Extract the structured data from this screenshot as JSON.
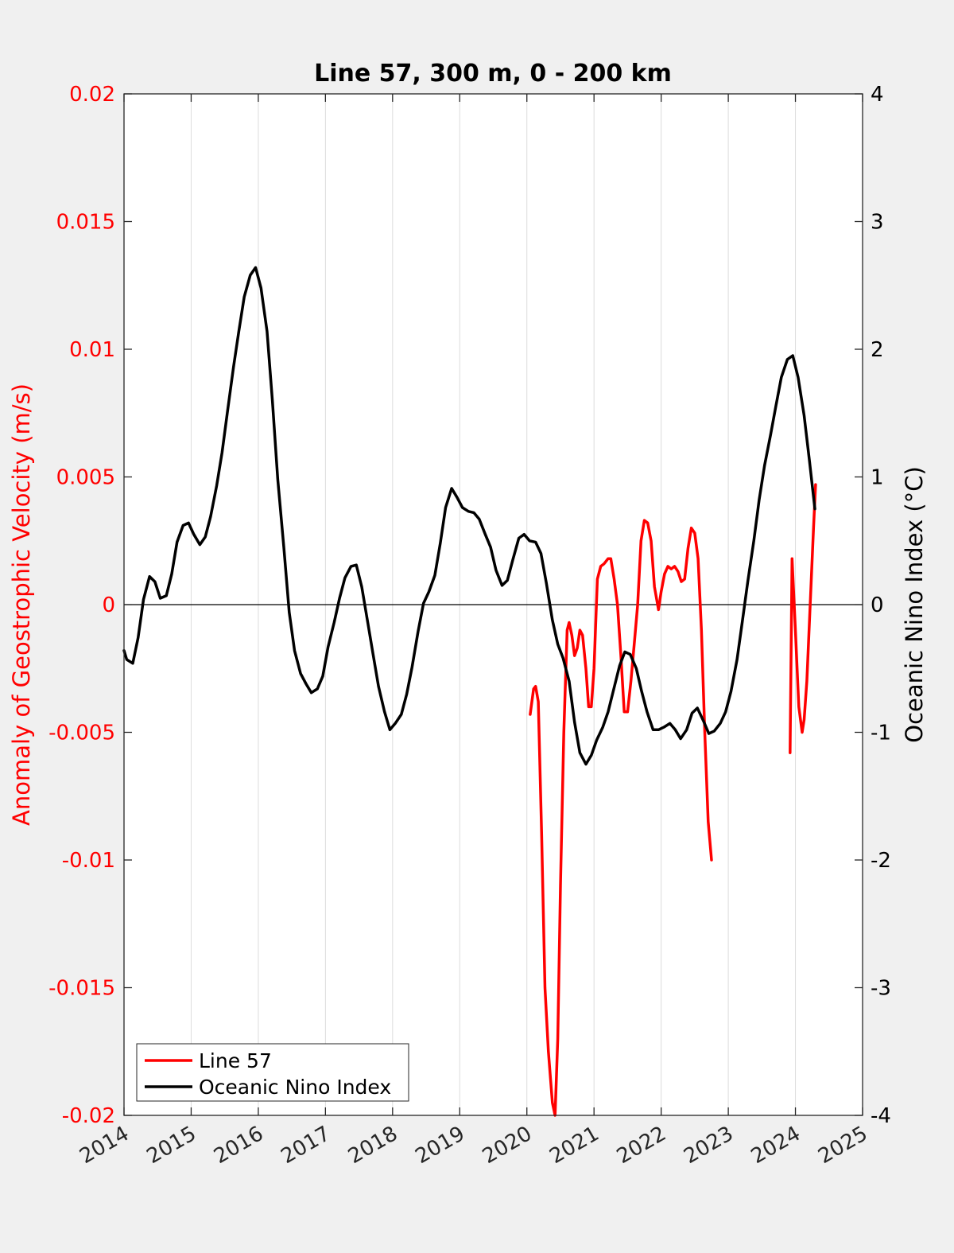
{
  "chart_data": {
    "type": "line",
    "title": "Line 57, 300 m, 0 - 200 km",
    "xlabel": "",
    "ylabel_left": "Anomaly of Geostrophic Velocity (m/s)",
    "ylabel_right": "Oceanic Nino Index (°C)",
    "xlim": [
      2014,
      2025
    ],
    "ylim_left": [
      -0.02,
      0.02
    ],
    "ylim_right": [
      -4,
      4
    ],
    "x_ticks": [
      "2014",
      "2015",
      "2016",
      "2017",
      "2018",
      "2019",
      "2020",
      "2021",
      "2022",
      "2023",
      "2024",
      "2025"
    ],
    "y_left_ticks": [
      "-0.02",
      "-0.015",
      "-0.01",
      "-0.005",
      "0",
      "0.005",
      "0.01",
      "0.015",
      "0.02"
    ],
    "y_right_ticks": [
      "-4",
      "-3",
      "-2",
      "-1",
      "0",
      "1",
      "2",
      "3",
      "4"
    ],
    "grid": "vertical",
    "zero_line": true,
    "legend_position": "bottom-left",
    "colors": {
      "left_axis": "#ff0000",
      "right_axis": "#000000",
      "background": "#f0f0f0"
    },
    "series": [
      {
        "name": "Line 57",
        "axis": "left",
        "color": "#ff0000",
        "segments": [
          [
            [
              2020.05,
              -0.0043
            ],
            [
              2020.1,
              -0.0033
            ],
            [
              2020.13,
              -0.0032
            ],
            [
              2020.17,
              -0.0038
            ],
            [
              2020.22,
              -0.009
            ],
            [
              2020.27,
              -0.015
            ],
            [
              2020.32,
              -0.0175
            ],
            [
              2020.38,
              -0.0195
            ],
            [
              2020.42,
              -0.02
            ],
            [
              2020.46,
              -0.017
            ],
            [
              2020.5,
              -0.011
            ],
            [
              2020.55,
              -0.005
            ],
            [
              2020.6,
              -0.001
            ],
            [
              2020.63,
              -0.0007
            ],
            [
              2020.67,
              -0.0012
            ],
            [
              2020.71,
              -0.002
            ],
            [
              2020.75,
              -0.0017
            ],
            [
              2020.79,
              -0.001
            ],
            [
              2020.83,
              -0.0012
            ],
            [
              2020.88,
              -0.0025
            ],
            [
              2020.92,
              -0.004
            ],
            [
              2020.96,
              -0.004
            ],
            [
              2021.0,
              -0.0025
            ],
            [
              2021.05,
              0.001
            ],
            [
              2021.1,
              0.0015
            ],
            [
              2021.15,
              0.0016
            ],
            [
              2021.21,
              0.0018
            ],
            [
              2021.25,
              0.0018
            ],
            [
              2021.3,
              0.001
            ],
            [
              2021.35,
              0.0
            ],
            [
              2021.4,
              -0.002
            ],
            [
              2021.45,
              -0.0042
            ],
            [
              2021.5,
              -0.0042
            ],
            [
              2021.55,
              -0.003
            ],
            [
              2021.6,
              -0.0015
            ],
            [
              2021.65,
              0.0
            ],
            [
              2021.7,
              0.0025
            ],
            [
              2021.75,
              0.0033
            ],
            [
              2021.8,
              0.0032
            ],
            [
              2021.85,
              0.0025
            ],
            [
              2021.9,
              0.0007
            ],
            [
              2021.96,
              -0.0002
            ],
            [
              2022.0,
              0.0005
            ],
            [
              2022.05,
              0.0012
            ],
            [
              2022.1,
              0.0015
            ],
            [
              2022.15,
              0.0014
            ],
            [
              2022.2,
              0.0015
            ],
            [
              2022.25,
              0.0013
            ],
            [
              2022.3,
              0.0009
            ],
            [
              2022.35,
              0.001
            ],
            [
              2022.4,
              0.0022
            ],
            [
              2022.45,
              0.003
            ],
            [
              2022.5,
              0.0028
            ],
            [
              2022.55,
              0.0018
            ],
            [
              2022.6,
              -0.001
            ],
            [
              2022.65,
              -0.005
            ],
            [
              2022.7,
              -0.0085
            ],
            [
              2022.75,
              -0.01
            ]
          ],
          [
            [
              2023.92,
              -0.0058
            ],
            [
              2023.95,
              0.0018
            ],
            [
              2024.0,
              -0.001
            ],
            [
              2024.05,
              -0.004
            ],
            [
              2024.1,
              -0.005
            ],
            [
              2024.13,
              -0.0045
            ],
            [
              2024.17,
              -0.003
            ],
            [
              2024.22,
              0.0
            ],
            [
              2024.27,
              0.003
            ],
            [
              2024.3,
              0.0047
            ]
          ]
        ]
      },
      {
        "name": "Oceanic Nino Index",
        "axis": "right",
        "color": "#000000",
        "points": [
          [
            2014.0,
            -0.36
          ],
          [
            2014.04,
            -0.43
          ],
          [
            2014.13,
            -0.46
          ],
          [
            2014.21,
            -0.26
          ],
          [
            2014.29,
            0.04
          ],
          [
            2014.38,
            0.22
          ],
          [
            2014.46,
            0.18
          ],
          [
            2014.54,
            0.05
          ],
          [
            2014.63,
            0.07
          ],
          [
            2014.71,
            0.24
          ],
          [
            2014.79,
            0.49
          ],
          [
            2014.88,
            0.62
          ],
          [
            2014.96,
            0.64
          ],
          [
            2015.04,
            0.55
          ],
          [
            2015.13,
            0.47
          ],
          [
            2015.21,
            0.53
          ],
          [
            2015.29,
            0.69
          ],
          [
            2015.38,
            0.93
          ],
          [
            2015.46,
            1.19
          ],
          [
            2015.54,
            1.51
          ],
          [
            2015.63,
            1.86
          ],
          [
            2015.71,
            2.14
          ],
          [
            2015.79,
            2.41
          ],
          [
            2015.88,
            2.58
          ],
          [
            2015.96,
            2.64
          ],
          [
            2016.04,
            2.48
          ],
          [
            2016.13,
            2.14
          ],
          [
            2016.21,
            1.6
          ],
          [
            2016.29,
            0.98
          ],
          [
            2016.38,
            0.45
          ],
          [
            2016.46,
            -0.06
          ],
          [
            2016.54,
            -0.36
          ],
          [
            2016.63,
            -0.54
          ],
          [
            2016.71,
            -0.62
          ],
          [
            2016.79,
            -0.69
          ],
          [
            2016.88,
            -0.66
          ],
          [
            2016.96,
            -0.56
          ],
          [
            2017.04,
            -0.33
          ],
          [
            2017.13,
            -0.14
          ],
          [
            2017.21,
            0.05
          ],
          [
            2017.29,
            0.21
          ],
          [
            2017.38,
            0.3
          ],
          [
            2017.46,
            0.31
          ],
          [
            2017.54,
            0.14
          ],
          [
            2017.63,
            -0.14
          ],
          [
            2017.71,
            -0.39
          ],
          [
            2017.79,
            -0.64
          ],
          [
            2017.88,
            -0.84
          ],
          [
            2017.96,
            -0.98
          ],
          [
            2018.04,
            -0.93
          ],
          [
            2018.13,
            -0.86
          ],
          [
            2018.21,
            -0.7
          ],
          [
            2018.29,
            -0.49
          ],
          [
            2018.38,
            -0.21
          ],
          [
            2018.46,
            0.01
          ],
          [
            2018.54,
            0.1
          ],
          [
            2018.63,
            0.23
          ],
          [
            2018.71,
            0.48
          ],
          [
            2018.79,
            0.76
          ],
          [
            2018.88,
            0.91
          ],
          [
            2018.96,
            0.84
          ],
          [
            2019.04,
            0.76
          ],
          [
            2019.13,
            0.73
          ],
          [
            2019.21,
            0.72
          ],
          [
            2019.29,
            0.67
          ],
          [
            2019.38,
            0.55
          ],
          [
            2019.46,
            0.45
          ],
          [
            2019.54,
            0.27
          ],
          [
            2019.63,
            0.15
          ],
          [
            2019.71,
            0.19
          ],
          [
            2019.79,
            0.35
          ],
          [
            2019.88,
            0.52
          ],
          [
            2019.96,
            0.55
          ],
          [
            2020.04,
            0.5
          ],
          [
            2020.13,
            0.49
          ],
          [
            2020.21,
            0.4
          ],
          [
            2020.29,
            0.17
          ],
          [
            2020.38,
            -0.12
          ],
          [
            2020.46,
            -0.31
          ],
          [
            2020.54,
            -0.42
          ],
          [
            2020.63,
            -0.6
          ],
          [
            2020.71,
            -0.92
          ],
          [
            2020.79,
            -1.16
          ],
          [
            2020.88,
            -1.25
          ],
          [
            2020.96,
            -1.18
          ],
          [
            2021.04,
            -1.06
          ],
          [
            2021.13,
            -0.96
          ],
          [
            2021.21,
            -0.84
          ],
          [
            2021.29,
            -0.67
          ],
          [
            2021.38,
            -0.48
          ],
          [
            2021.46,
            -0.37
          ],
          [
            2021.54,
            -0.39
          ],
          [
            2021.63,
            -0.5
          ],
          [
            2021.71,
            -0.68
          ],
          [
            2021.79,
            -0.84
          ],
          [
            2021.88,
            -0.98
          ],
          [
            2021.96,
            -0.98
          ],
          [
            2022.04,
            -0.96
          ],
          [
            2022.13,
            -0.93
          ],
          [
            2022.21,
            -0.98
          ],
          [
            2022.29,
            -1.05
          ],
          [
            2022.38,
            -0.98
          ],
          [
            2022.46,
            -0.85
          ],
          [
            2022.54,
            -0.81
          ],
          [
            2022.63,
            -0.91
          ],
          [
            2022.71,
            -1.01
          ],
          [
            2022.79,
            -0.99
          ],
          [
            2022.88,
            -0.93
          ],
          [
            2022.96,
            -0.84
          ],
          [
            2023.04,
            -0.68
          ],
          [
            2023.13,
            -0.43
          ],
          [
            2023.21,
            -0.13
          ],
          [
            2023.29,
            0.18
          ],
          [
            2023.38,
            0.5
          ],
          [
            2023.46,
            0.82
          ],
          [
            2023.54,
            1.09
          ],
          [
            2023.63,
            1.33
          ],
          [
            2023.71,
            1.56
          ],
          [
            2023.79,
            1.78
          ],
          [
            2023.88,
            1.92
          ],
          [
            2023.96,
            1.95
          ],
          [
            2024.04,
            1.78
          ],
          [
            2024.13,
            1.48
          ],
          [
            2024.21,
            1.12
          ],
          [
            2024.29,
            0.75
          ]
        ]
      }
    ]
  }
}
